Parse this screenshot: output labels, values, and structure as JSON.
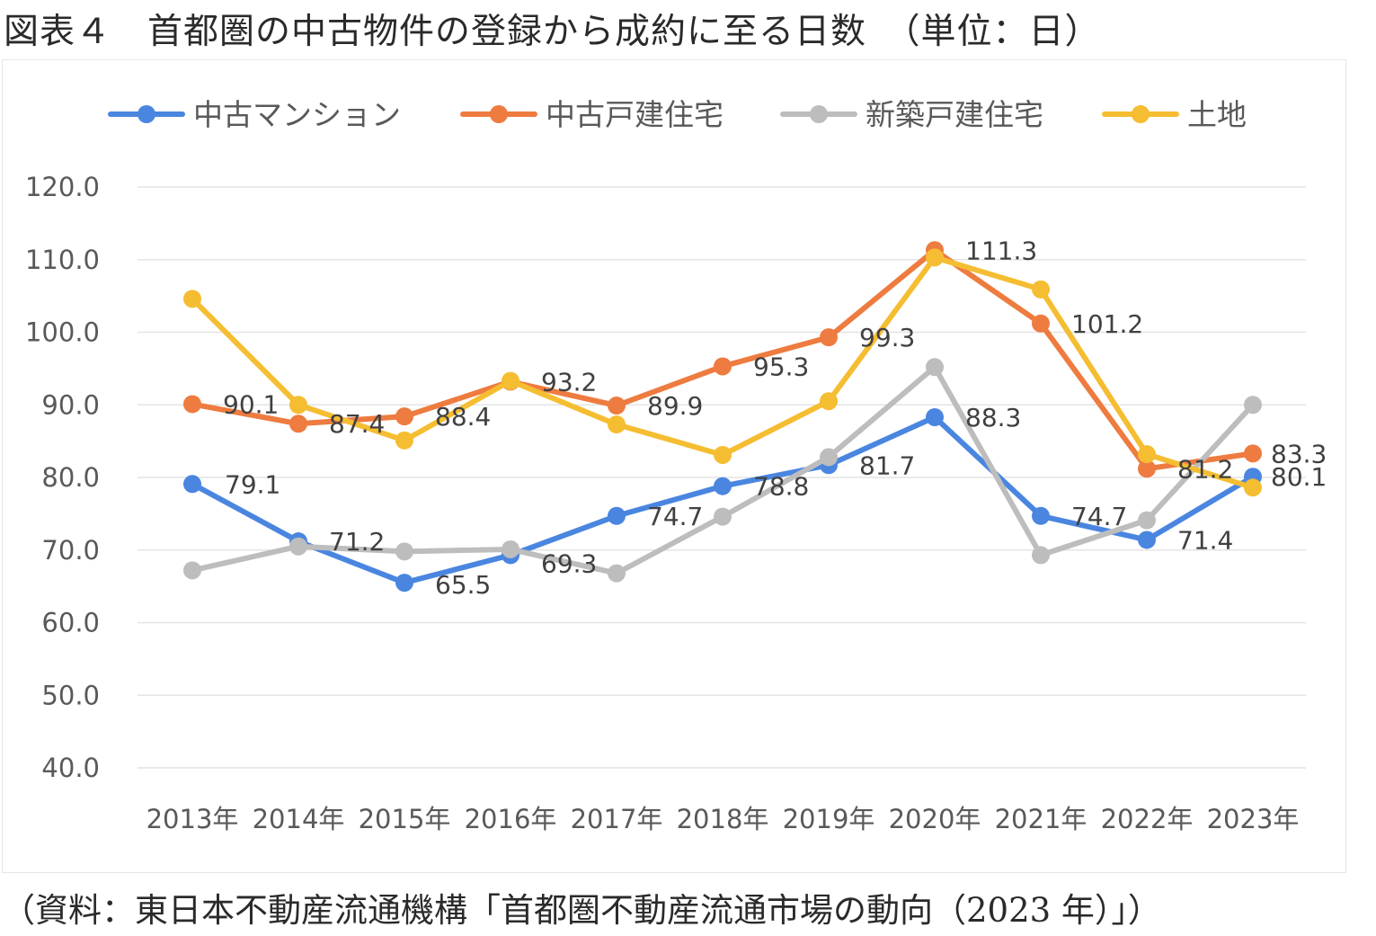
{
  "figure": {
    "title": "図表４　首都圏の中古物件の登録から成約に至る日数　（単位：日）",
    "source": "（資料：東日本不動産流通機構「首都圏不動産流通市場の動向（2023 年）」）"
  },
  "chart_data": {
    "type": "line",
    "title": "",
    "xlabel": "",
    "ylabel": "",
    "ylim": [
      40,
      120
    ],
    "yticks": [
      "40.0",
      "50.0",
      "60.0",
      "70.0",
      "80.0",
      "90.0",
      "100.0",
      "110.0",
      "120.0"
    ],
    "grid": true,
    "legend_position": "top",
    "categories": [
      "2013年",
      "2014年",
      "2015年",
      "2016年",
      "2017年",
      "2018年",
      "2019年",
      "2020年",
      "2021年",
      "2022年",
      "2023年"
    ],
    "series": [
      {
        "name": "中古マンション",
        "color": "#4a86e0",
        "values": [
          79.1,
          71.2,
          65.5,
          69.3,
          74.7,
          78.8,
          81.7,
          88.3,
          74.7,
          71.4,
          80.1
        ],
        "labels": [
          "79.1",
          "71.2",
          "65.5",
          "69.3",
          "74.7",
          "78.8",
          "81.7",
          "88.3",
          "74.7",
          "71.4",
          "80.1"
        ]
      },
      {
        "name": "中古戸建住宅",
        "color": "#ee7b3f",
        "values": [
          90.1,
          87.4,
          88.4,
          93.2,
          89.9,
          95.3,
          99.3,
          111.3,
          101.2,
          81.2,
          83.3
        ],
        "labels": [
          "90.1",
          "87.4",
          "88.4",
          "93.2",
          "89.9",
          "95.3",
          "99.3",
          "111.3",
          "101.2",
          "81.2",
          "83.3"
        ]
      },
      {
        "name": "新築戸建住宅",
        "color": "#bdbdbd",
        "values": [
          67.2,
          70.5,
          69.8,
          70.1,
          66.8,
          74.6,
          82.8,
          95.2,
          69.3,
          74.1,
          90.0
        ]
      },
      {
        "name": "土地",
        "color": "#f5bd31",
        "values": [
          104.6,
          90.0,
          85.1,
          93.3,
          87.3,
          83.1,
          90.5,
          110.3,
          105.9,
          83.2,
          78.6
        ]
      }
    ]
  }
}
